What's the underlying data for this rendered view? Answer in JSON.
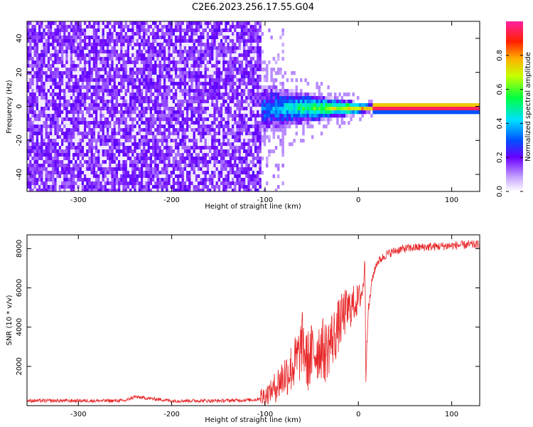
{
  "title": "C2E6.2023.256.17.55.G04",
  "chart_data": [
    {
      "type": "heatmap",
      "title": "C2E6.2023.256.17.55.G04",
      "xlabel": "Height of straight line (km)",
      "ylabel": "Frequency (Hz)",
      "xlim": [
        -355,
        130
      ],
      "ylim": [
        -50,
        50
      ],
      "x_ticks": [
        -300,
        -200,
        -100,
        0,
        100
      ],
      "y_ticks": [
        -40,
        -20,
        0,
        20,
        40
      ],
      "colorbar": {
        "label": "Normalized spectral amplitude",
        "range": [
          0,
          1
        ],
        "ticks": [
          0,
          0.2,
          0.4,
          0.6,
          0.8
        ],
        "colormap": "rainbow (white-violet-blue-cyan-green-yellow-red-magenta)"
      },
      "description_points": {
        "noise_region_x": [
          -355,
          -105
        ],
        "transition_region_x": [
          -105,
          15
        ],
        "carrier_line_x": [
          15,
          130
        ],
        "carrier_frequency": 0
      }
    },
    {
      "type": "line",
      "xlabel": "Height of straight line (km)",
      "ylabel": "SNR (10 * v/v)",
      "xlim": [
        -355,
        130
      ],
      "ylim": [
        0,
        8700
      ],
      "x_ticks": [
        -300,
        -200,
        -100,
        0,
        100
      ],
      "y_ticks": [
        2000,
        4000,
        6000,
        8000
      ],
      "series": [
        {
          "color": "#e8282a",
          "x": [
            -355,
            -300,
            -250,
            -240,
            -200,
            -150,
            -110,
            -100,
            -90,
            -80,
            -70,
            -63,
            -60,
            -55,
            -50,
            -40,
            -35,
            -30,
            -25,
            -20,
            -15,
            -10,
            -5,
            0,
            5,
            7,
            8,
            10,
            15,
            20,
            30,
            40,
            50,
            60,
            80,
            100,
            120,
            130
          ],
          "y": [
            250,
            250,
            250,
            450,
            250,
            250,
            300,
            500,
            900,
            1500,
            2000,
            2600,
            3300,
            2200,
            2600,
            3000,
            2700,
            3300,
            3600,
            4200,
            4700,
            4900,
            5200,
            5400,
            5900,
            7600,
            1500,
            4500,
            6500,
            7300,
            7700,
            7900,
            8000,
            8050,
            8100,
            8150,
            8200,
            8200
          ]
        }
      ]
    }
  ]
}
